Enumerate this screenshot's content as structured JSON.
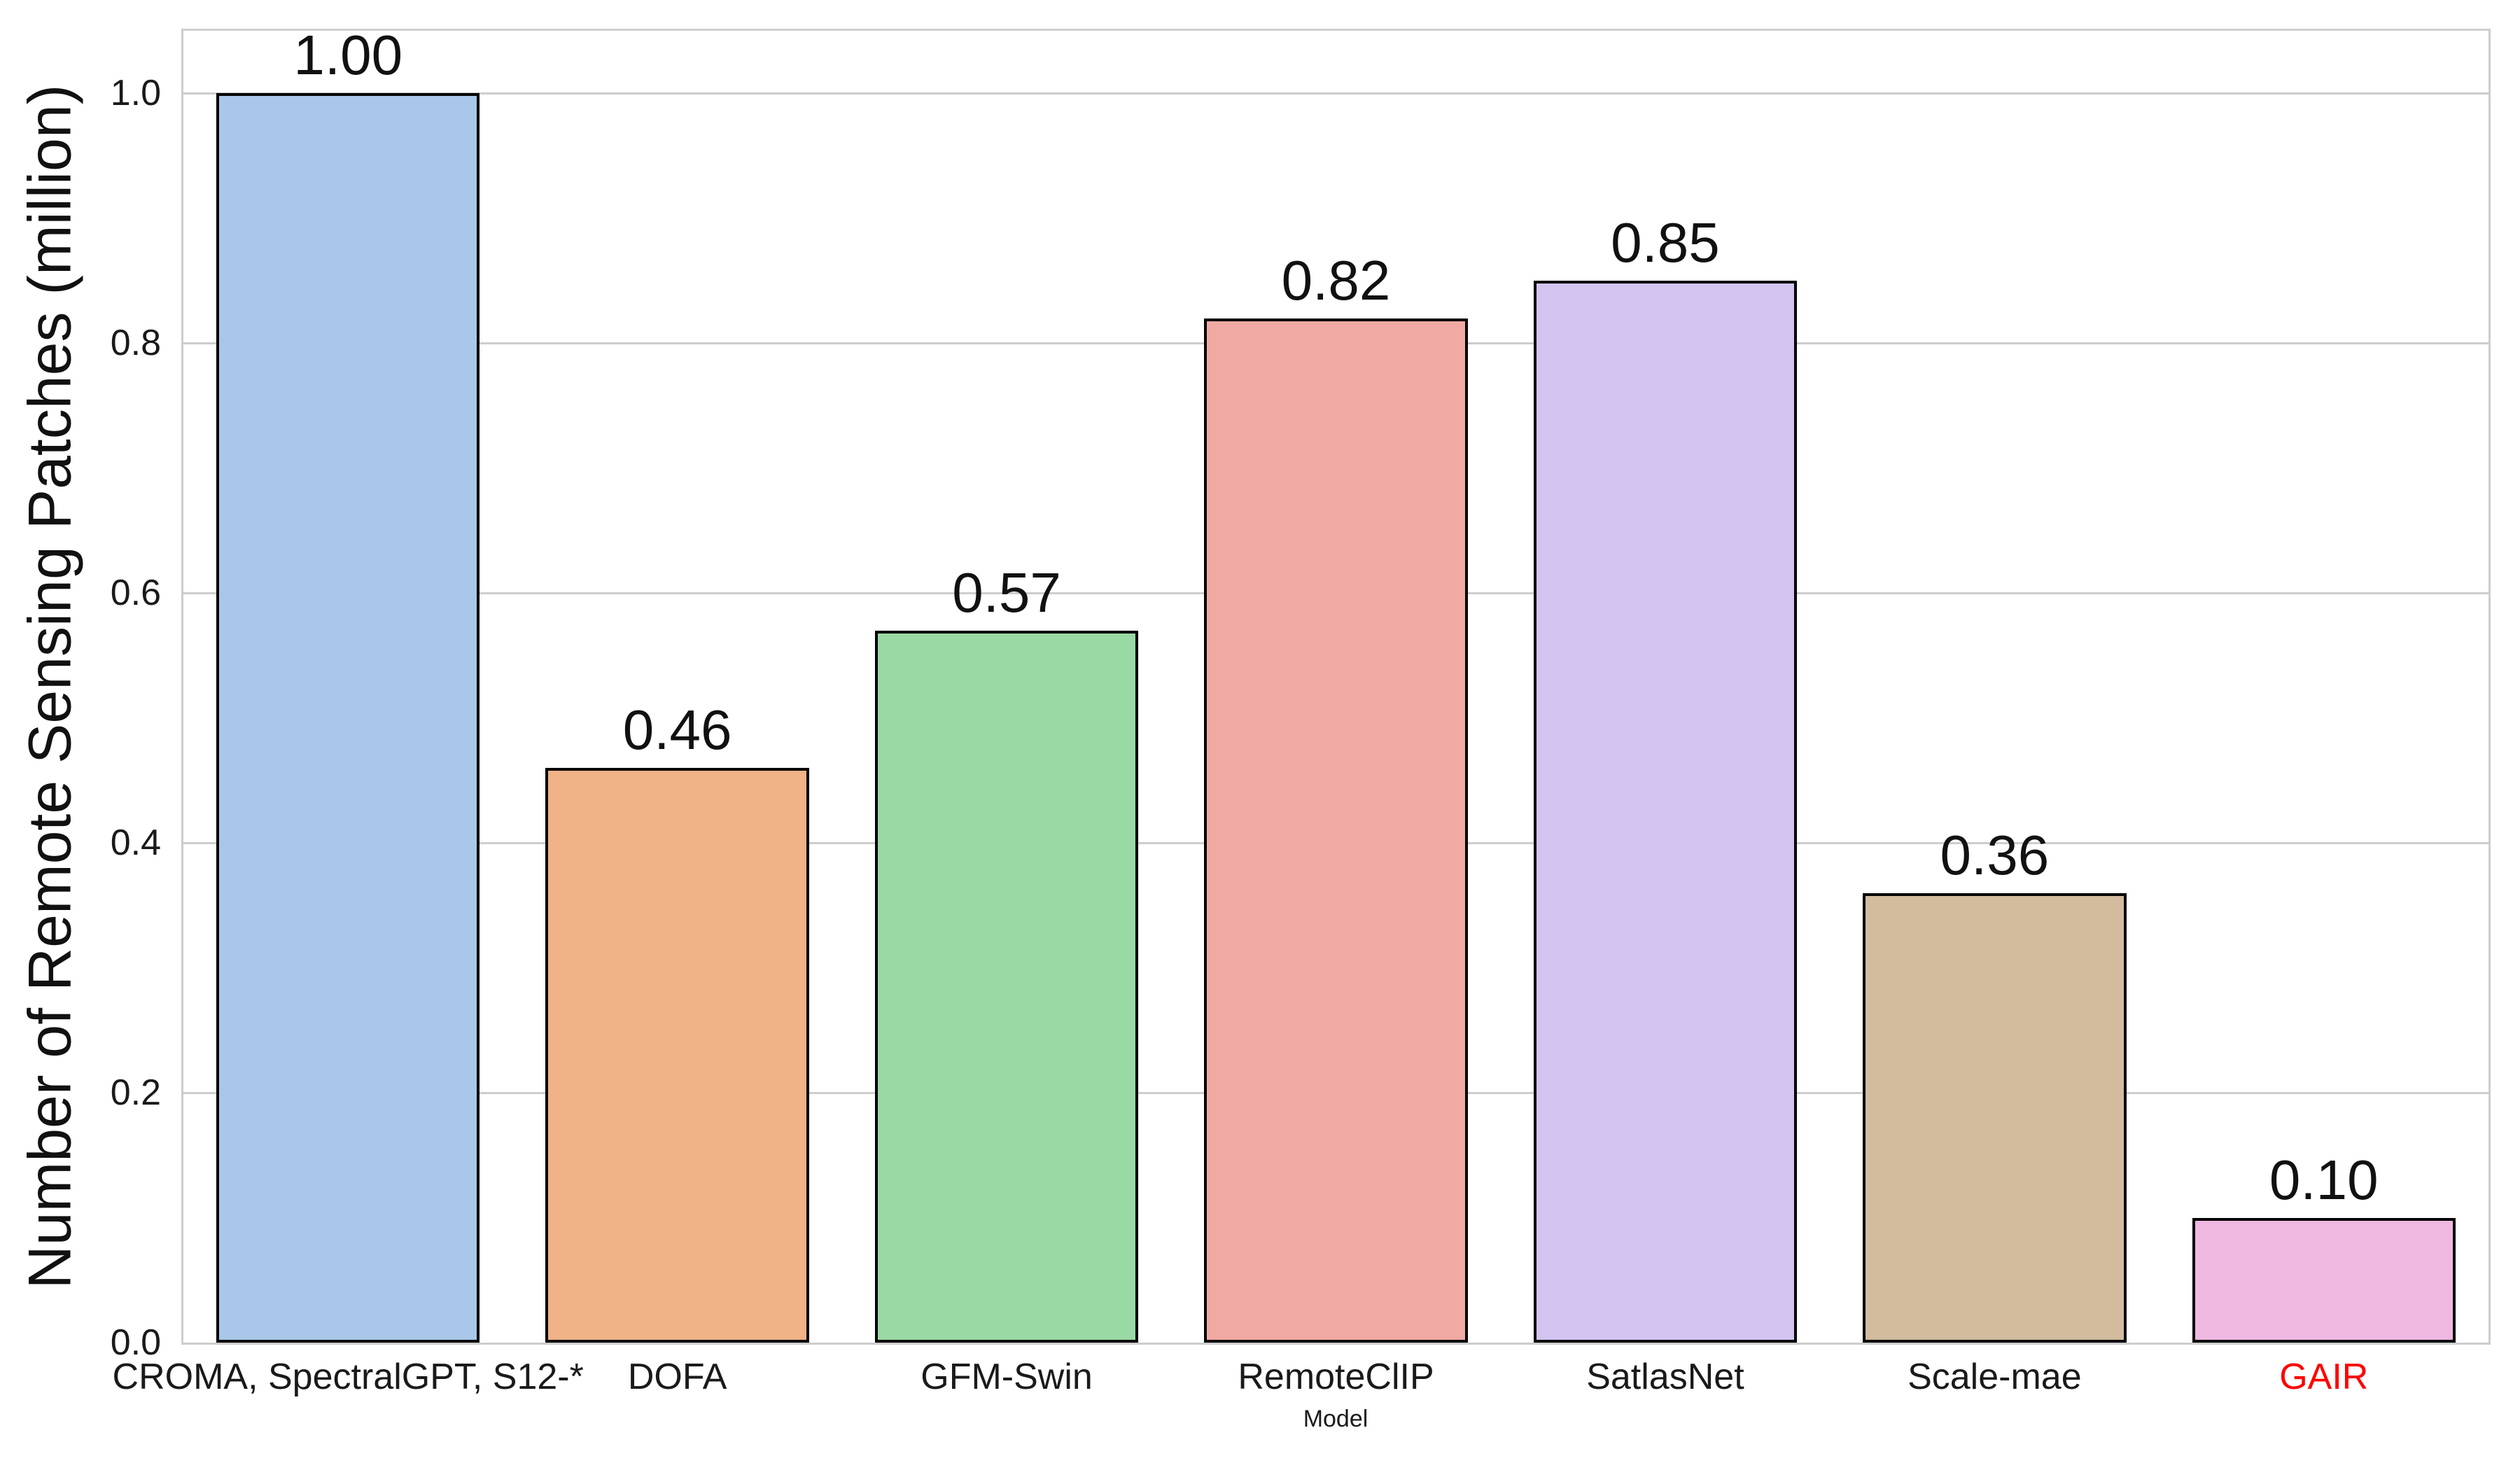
{
  "chart_data": {
    "type": "bar",
    "title": "",
    "xlabel": "Model",
    "ylabel": "Number of Remote Sensing Patches (million)",
    "categories": [
      "CROMA, SpectralGPT, S12-*",
      "DOFA",
      "GFM-Swin",
      "RemoteClIP",
      "SatlasNet",
      "Scale-mae",
      "GAIR"
    ],
    "values": [
      1.0,
      0.46,
      0.57,
      0.82,
      0.85,
      0.36,
      0.1
    ],
    "value_labels": [
      "1.00",
      "0.46",
      "0.57",
      "0.82",
      "0.85",
      "0.36",
      "0.10"
    ],
    "bar_colors": [
      "#a9c8e9",
      "#f0b287",
      "#99d9a3",
      "#f1a9a3",
      "#d2c3f0",
      "#d3bb9e",
      "#eeb8e1"
    ],
    "bar_edge_color": "#000000",
    "tick_label_colors": [
      "#1a1a1a",
      "#1a1a1a",
      "#1a1a1a",
      "#1a1a1a",
      "#1a1a1a",
      "#1a1a1a",
      "#ff0000"
    ],
    "highlighted_category": "GAIR",
    "highlight_color": "#ff0000",
    "yticks": [
      "0.0",
      "0.2",
      "0.4",
      "0.6",
      "0.8",
      "1.0"
    ],
    "ytick_values": [
      0.0,
      0.2,
      0.4,
      0.6,
      0.8,
      1.0
    ],
    "ylim": [
      0,
      1.05
    ],
    "grid": "horizontal",
    "grid_color": "#cdcdcd",
    "legend": "none",
    "bar_width_fraction": 0.8
  }
}
